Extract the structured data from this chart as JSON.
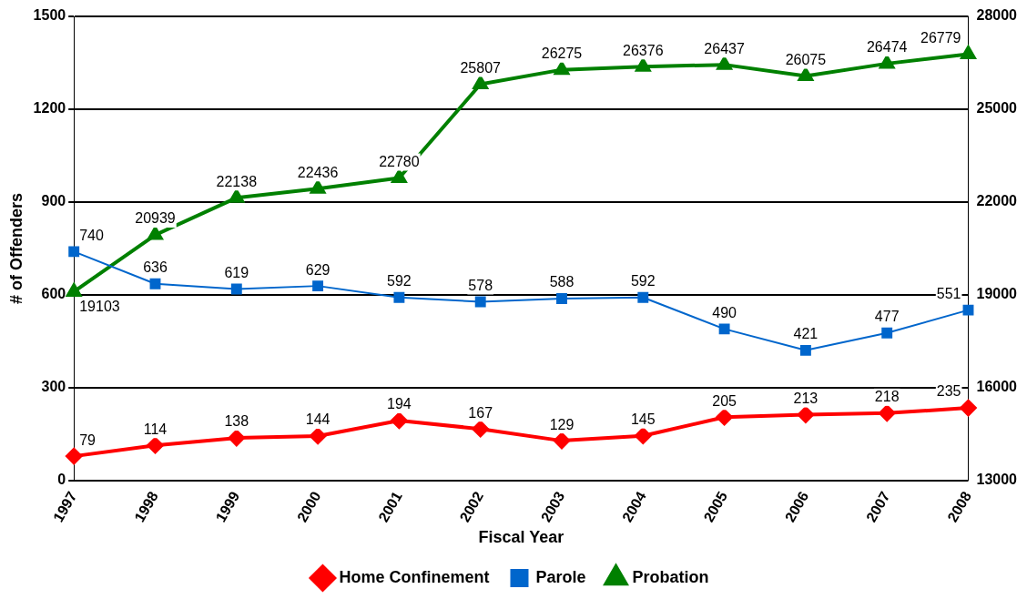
{
  "chart_data": {
    "type": "line",
    "xlabel": "Fiscal Year",
    "ylabel": "# of Offenders",
    "categories": [
      "1997",
      "1998",
      "1999",
      "2000",
      "2001",
      "2002",
      "2003",
      "2004",
      "2005",
      "2006",
      "2007",
      "2008"
    ],
    "series": [
      {
        "name": "Home Confinement",
        "color": "#ff0000",
        "marker": "diamond",
        "values": [
          79,
          114,
          138,
          144,
          194,
          167,
          129,
          145,
          205,
          213,
          218,
          235
        ]
      },
      {
        "name": "Parole",
        "color": "#0066cc",
        "marker": "square",
        "values": [
          740,
          636,
          619,
          629,
          592,
          578,
          588,
          592,
          490,
          421,
          477,
          551
        ]
      },
      {
        "name": "Probation",
        "color": "#008000",
        "marker": "triangle",
        "axis": "y2",
        "values": [
          19103,
          20939,
          22138,
          22436,
          22780,
          25807,
          26275,
          26376,
          26437,
          26075,
          26474,
          26779
        ]
      }
    ],
    "ylim": [
      0,
      1500
    ],
    "yticks": [
      0,
      300,
      600,
      900,
      1200,
      1500
    ],
    "y2lim": [
      13000,
      28000
    ],
    "y2ticks": [
      13000,
      16000,
      19000,
      22000,
      25000,
      28000
    ],
    "grid": "y",
    "legend": "bottom",
    "data_labels": true
  }
}
